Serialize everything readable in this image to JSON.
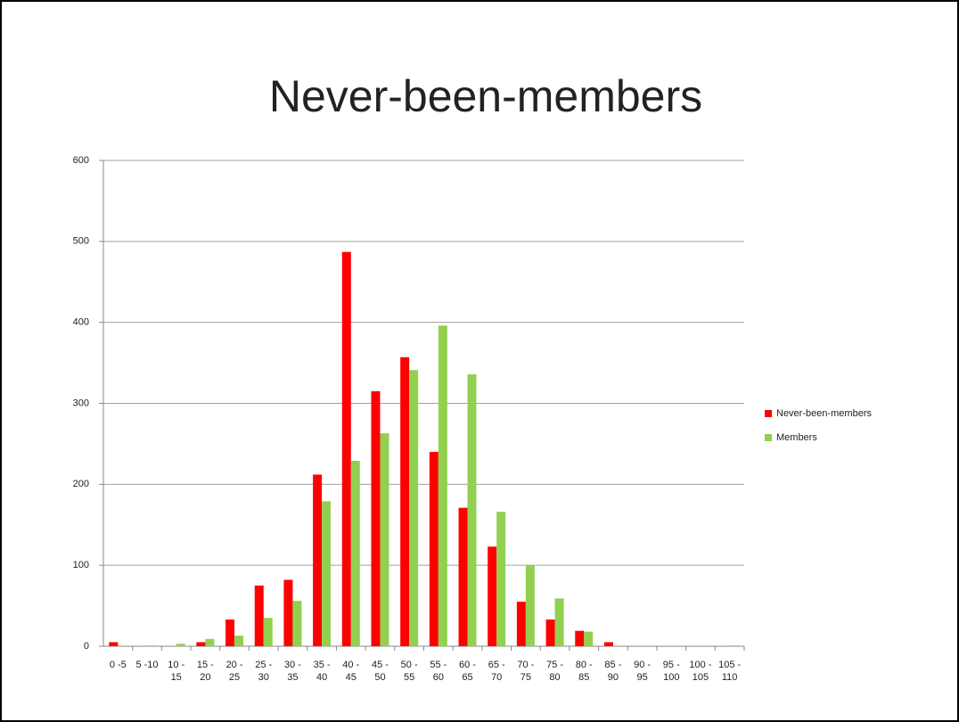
{
  "chart_data": {
    "type": "bar",
    "title": "Never-been-members",
    "categories": [
      "0 -5",
      "5 -10",
      "10 - 15",
      "15 - 20",
      "20 - 25",
      "25 - 30",
      "30 - 35",
      "35 - 40",
      "40 - 45",
      "45 - 50",
      "50 - 55",
      "55 - 60",
      "60 - 65",
      "65 - 70",
      "70 - 75",
      "75 - 80",
      "80 - 85",
      "85 - 90",
      "90 - 95",
      "95 - 100",
      "100 - 105",
      "105 - 110"
    ],
    "series": [
      {
        "name": "Never-been-members",
        "color": "#ff0000",
        "values": [
          5,
          0,
          0,
          5,
          33,
          75,
          82,
          212,
          487,
          315,
          357,
          240,
          171,
          123,
          55,
          33,
          19,
          5,
          0,
          0,
          0,
          0
        ]
      },
      {
        "name": "Members",
        "color": "#92d050",
        "values": [
          0,
          1,
          3,
          9,
          13,
          35,
          56,
          179,
          229,
          263,
          341,
          396,
          336,
          166,
          100,
          59,
          18,
          0,
          0,
          0,
          0,
          1
        ]
      }
    ],
    "ylim": [
      0,
      600
    ],
    "yticks": [
      0,
      100,
      200,
      300,
      400,
      500,
      600
    ],
    "grid": true,
    "legend": "right"
  }
}
